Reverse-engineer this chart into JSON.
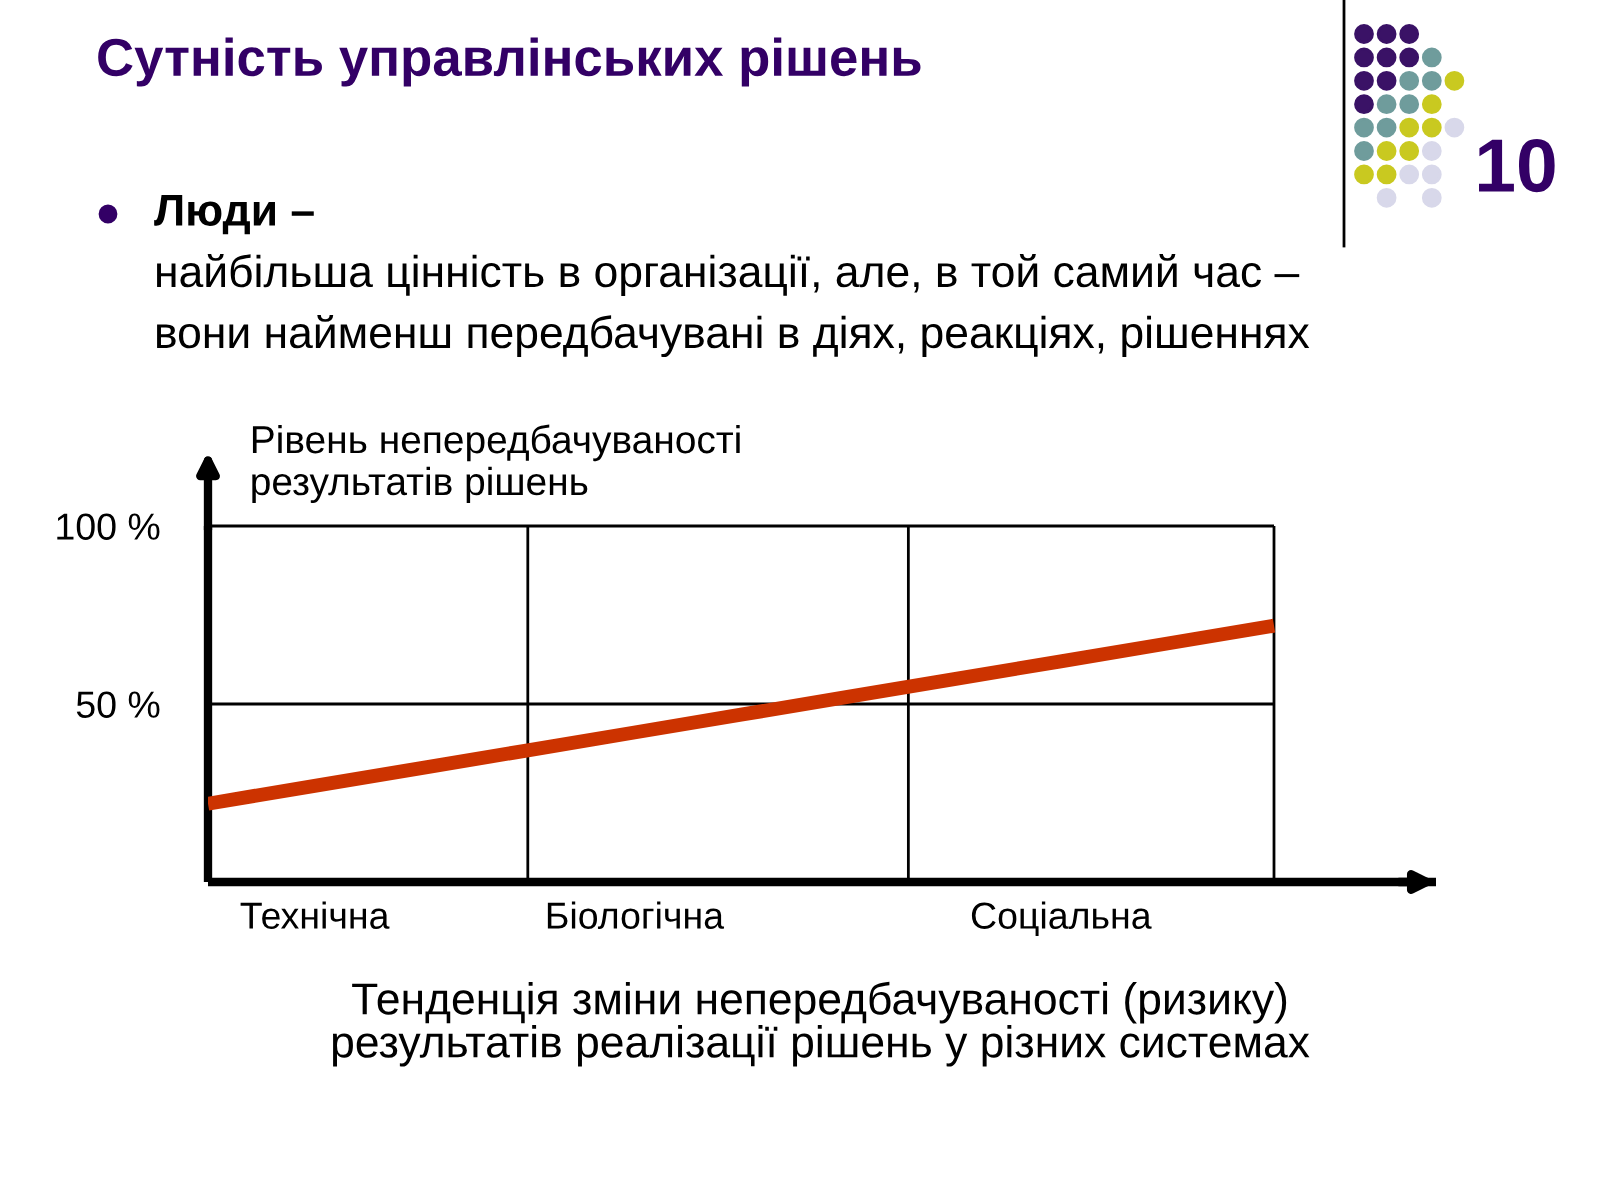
{
  "chart_data": {
    "type": "line",
    "title": "Сутність управлінських рішень",
    "subtitle": "Люди –\nнайбільша цінність в організації, але, в той самий час –\nвони найменш передбачувані в діях, реакціях, рішеннях",
    "xlabel": "Тенденція зміни непередбачуваності (ризику)\nрезультатів реалізації рішень у різних системах",
    "ylabel": "Рівень непередбачуваності\nрезультатів рішень",
    "annotations": [
      "10"
    ],
    "categories": [
      null,
      "Технічна",
      null,
      null,
      "Біологічна",
      null,
      null,
      null,
      "Соціальна",
      null,
      null
    ],
    "ylim": [
      0,
      100
    ],
    "yticks": [
      {
        "value": 50,
        "label": "50 %"
      },
      {
        "value": 100,
        "label": "100 %"
      }
    ],
    "series": [
      {
        "color": "#cc3300",
        "values": [
          22,
          27,
          32,
          37,
          42,
          47,
          52,
          57,
          62,
          67,
          72
        ]
      }
    ],
    "grid": true,
    "marker": "none",
    "line_style": "solid"
  }
}
